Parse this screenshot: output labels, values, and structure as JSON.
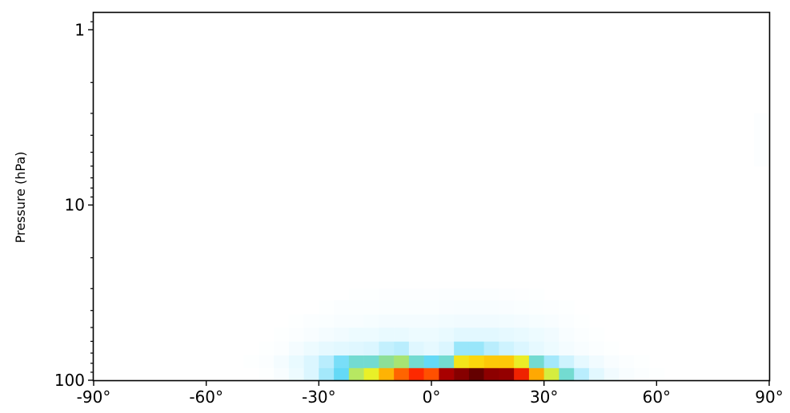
{
  "chart_data": {
    "type": "heatmap",
    "title": "",
    "xlabel": "",
    "ylabel": "Pressure (hPa)",
    "xlim": [
      -90,
      90
    ],
    "ylim": [
      100,
      0.8
    ],
    "yscale": "log",
    "grid": false,
    "legend": "none",
    "colorbar": false,
    "colormap": [
      "#ffffff",
      "#d7f5ff",
      "#62d8f6",
      "#93e08a",
      "#e8f12a",
      "#fdd60a",
      "#ff9a00",
      "#ff2a00",
      "#b00000",
      "#640000"
    ],
    "x_ticks": [
      {
        "value": -90,
        "label": "-90°"
      },
      {
        "value": -60,
        "label": "-60°"
      },
      {
        "value": -30,
        "label": "-30°"
      },
      {
        "value": 0,
        "label": "0°"
      },
      {
        "value": 30,
        "label": "30°"
      },
      {
        "value": 60,
        "label": "60°"
      },
      {
        "value": 90,
        "label": "90°"
      }
    ],
    "y_ticks": [
      {
        "value": 1,
        "label": "1"
      },
      {
        "value": 10,
        "label": "10"
      },
      {
        "value": 100,
        "label": "100"
      }
    ],
    "x_edges": [
      -90,
      -86,
      -82,
      -78,
      -74,
      -70,
      -66,
      -62,
      -58,
      -54,
      -50,
      -46,
      -42,
      -38,
      -34,
      -30,
      -26,
      -22,
      -18,
      -14,
      -10,
      -6,
      -2,
      2,
      6,
      10,
      14,
      18,
      22,
      26,
      30,
      34,
      38,
      42,
      46,
      50,
      54,
      58,
      62,
      66,
      70,
      74,
      78,
      82,
      86,
      90
    ],
    "levels": [
      {
        "p_top": 85,
        "p_bottom": 100,
        "values": [
          0,
          0,
          0,
          0,
          0,
          0,
          0,
          0,
          0,
          0,
          0,
          0.005,
          0.02,
          0.05,
          0.1,
          0.16,
          0.22,
          0.38,
          0.45,
          0.62,
          0.72,
          0.78,
          0.74,
          0.9,
          0.95,
          1.0,
          0.94,
          0.93,
          0.8,
          0.64,
          0.42,
          0.26,
          0.14,
          0.08,
          0.04,
          0.02,
          0.01,
          0.005,
          0,
          0,
          0,
          0,
          0,
          0,
          0
        ]
      },
      {
        "p_top": 72,
        "p_bottom": 85,
        "values": [
          0,
          0,
          0,
          0,
          0,
          0,
          0,
          0,
          0,
          0,
          0.005,
          0.01,
          0.03,
          0.06,
          0.1,
          0.14,
          0.2,
          0.26,
          0.26,
          0.32,
          0.36,
          0.26,
          0.22,
          0.26,
          0.5,
          0.55,
          0.58,
          0.58,
          0.46,
          0.26,
          0.16,
          0.12,
          0.07,
          0.04,
          0.02,
          0.01,
          0.005,
          0,
          0,
          0,
          0,
          0,
          0,
          0,
          0
        ]
      },
      {
        "p_top": 60,
        "p_bottom": 72,
        "values": [
          0,
          0,
          0,
          0,
          0,
          0,
          0,
          0,
          0,
          0,
          0,
          0.005,
          0.01,
          0.03,
          0.05,
          0.07,
          0.08,
          0.09,
          0.1,
          0.13,
          0.14,
          0.09,
          0.07,
          0.1,
          0.17,
          0.17,
          0.14,
          0.12,
          0.1,
          0.07,
          0.05,
          0.03,
          0.02,
          0.01,
          0.005,
          0,
          0,
          0,
          0,
          0,
          0,
          0,
          0,
          0,
          0
        ]
      },
      {
        "p_top": 50,
        "p_bottom": 60,
        "values": [
          0,
          0,
          0,
          0,
          0,
          0,
          0,
          0,
          0,
          0,
          0,
          0,
          0.005,
          0.01,
          0.02,
          0.03,
          0.04,
          0.05,
          0.05,
          0.06,
          0.06,
          0.05,
          0.05,
          0.06,
          0.08,
          0.08,
          0.08,
          0.07,
          0.06,
          0.05,
          0.04,
          0.02,
          0.01,
          0.005,
          0,
          0,
          0,
          0,
          0,
          0,
          0,
          0,
          0,
          0,
          0
        ]
      },
      {
        "p_top": 42,
        "p_bottom": 50,
        "values": [
          0,
          0,
          0,
          0,
          0,
          0,
          0,
          0,
          0,
          0,
          0,
          0,
          0,
          0.005,
          0.01,
          0.015,
          0.02,
          0.02,
          0.025,
          0.03,
          0.03,
          0.03,
          0.03,
          0.035,
          0.04,
          0.04,
          0.04,
          0.035,
          0.03,
          0.025,
          0.02,
          0.01,
          0.005,
          0,
          0,
          0,
          0,
          0,
          0,
          0,
          0,
          0,
          0,
          0,
          0
        ]
      },
      {
        "p_top": 35,
        "p_bottom": 42,
        "values": [
          0,
          0,
          0,
          0,
          0,
          0,
          0,
          0,
          0,
          0,
          0,
          0,
          0,
          0,
          0,
          0.005,
          0.01,
          0.01,
          0.012,
          0.015,
          0.015,
          0.015,
          0.015,
          0.018,
          0.02,
          0.02,
          0.02,
          0.018,
          0.015,
          0.012,
          0.008,
          0.005,
          0,
          0,
          0,
          0,
          0,
          0,
          0,
          0,
          0,
          0,
          0,
          0,
          0
        ]
      },
      {
        "p_top": 30,
        "p_bottom": 35,
        "values": [
          0,
          0,
          0,
          0,
          0,
          0,
          0,
          0,
          0,
          0,
          0,
          0,
          0,
          0,
          0,
          0,
          0,
          0.005,
          0.005,
          0.008,
          0.008,
          0.008,
          0.008,
          0.01,
          0.01,
          0.01,
          0.01,
          0.008,
          0.006,
          0.005,
          0,
          0,
          0,
          0,
          0,
          0,
          0,
          0,
          0,
          0,
          0,
          0,
          0,
          0,
          0
        ]
      },
      {
        "p_top": 3,
        "p_bottom": 6,
        "values": [
          0,
          0,
          0,
          0,
          0,
          0,
          0,
          0,
          0,
          0,
          0,
          0,
          0,
          0,
          0,
          0,
          0,
          0,
          0,
          0,
          0,
          0,
          0,
          0,
          0,
          0,
          0,
          0,
          0,
          0,
          0,
          0,
          0,
          0,
          0,
          0,
          0,
          0,
          0,
          0,
          0,
          0,
          0,
          0,
          0.008
        ]
      }
    ]
  }
}
